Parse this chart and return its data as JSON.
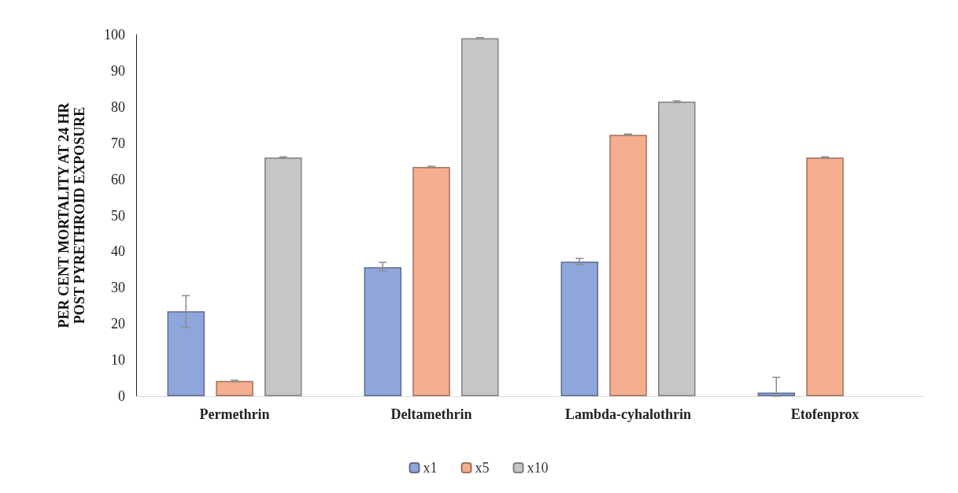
{
  "chart_data": {
    "type": "bar",
    "ylabel": "PER CENT MORTALITY AT 24 HR POST PYRETHROID EXPOSURE",
    "categories": [
      "Permethrin",
      "Deltamethrin",
      "Lambda-cyhalothrin",
      "Etofenprox"
    ],
    "series": [
      {
        "name": "x1",
        "color": "#8fa6db",
        "values": [
          23.5,
          35.7,
          37.2,
          1
        ],
        "errors": [
          [
            19,
            27.8
          ],
          [
            34.7,
            37
          ],
          [
            36.4,
            38.1
          ],
          [
            0,
            5.2
          ]
        ]
      },
      {
        "name": "x5",
        "color": "#f5ae8f",
        "values": [
          4.2,
          63.4,
          72.3,
          66
        ],
        "errors": [
          0.2,
          0.2,
          0.2,
          0.2
        ]
      },
      {
        "name": "x10",
        "color": "#c6c6c6",
        "values": [
          66,
          99,
          81.5,
          null
        ],
        "errors": [
          0.2,
          0.2,
          0.2,
          null
        ]
      }
    ],
    "ylim": [
      0,
      100
    ],
    "yticks": [
      0,
      10,
      20,
      30,
      40,
      50,
      60,
      70,
      80,
      90,
      100
    ],
    "grid": false,
    "legend": "bottom"
  }
}
